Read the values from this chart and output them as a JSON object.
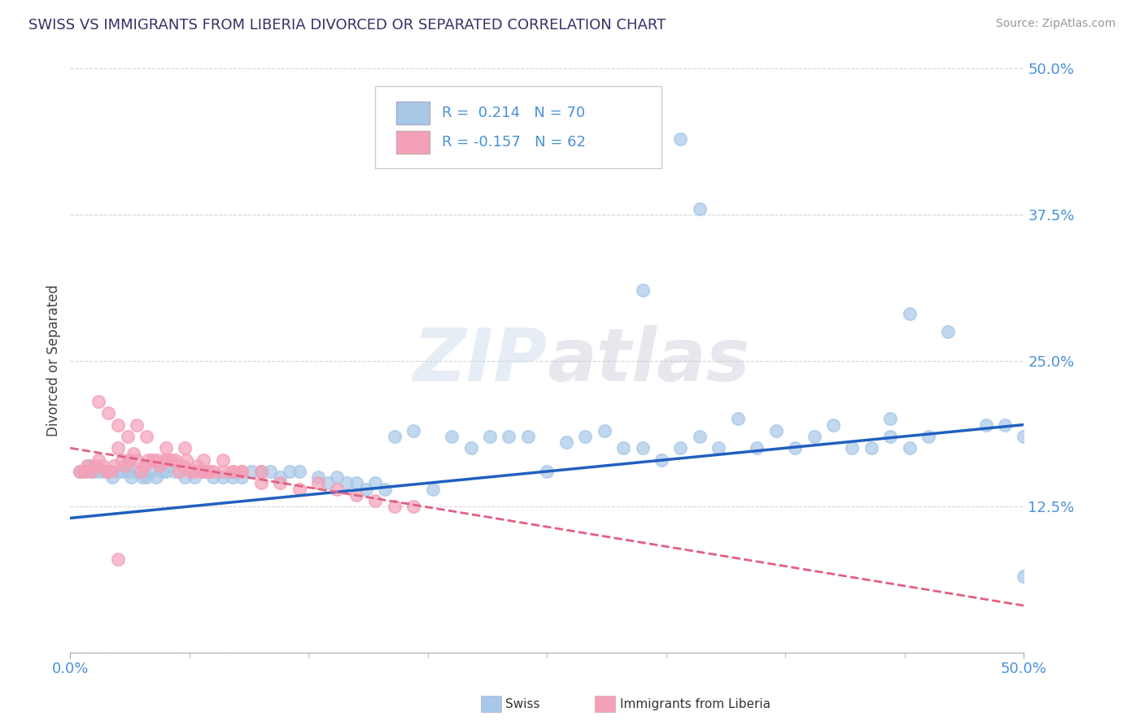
{
  "title": "SWISS VS IMMIGRANTS FROM LIBERIA DIVORCED OR SEPARATED CORRELATION CHART",
  "source": "Source: ZipAtlas.com",
  "ylabel": "Divorced or Separated",
  "xlim": [
    0.0,
    0.5
  ],
  "ylim": [
    0.0,
    0.5
  ],
  "yticks": [
    0.0,
    0.125,
    0.25,
    0.375,
    0.5
  ],
  "ytick_labels": [
    "",
    "12.5%",
    "25.0%",
    "37.5%",
    "50.0%"
  ],
  "swiss_color": "#a8c8e8",
  "liberia_color": "#f4a0b8",
  "swiss_line_color": "#2060c0",
  "liberia_line_color": "#e06080",
  "swiss_line_y0": 0.115,
  "swiss_line_y1": 0.195,
  "liberia_line_y0": 0.175,
  "liberia_line_y1": 0.04,
  "legend_patch_swiss": "#a8c8e8",
  "legend_patch_liberia": "#f4a0b8",
  "legend_text_color": "#4a90d9",
  "legend_r_color_swiss": "#4a90d9",
  "legend_r_color_liberia": "#4a90d9",
  "swiss_scatter": [
    [
      0.005,
      0.155
    ],
    [
      0.008,
      0.155
    ],
    [
      0.01,
      0.16
    ],
    [
      0.012,
      0.155
    ],
    [
      0.015,
      0.155
    ],
    [
      0.018,
      0.155
    ],
    [
      0.02,
      0.155
    ],
    [
      0.022,
      0.15
    ],
    [
      0.025,
      0.155
    ],
    [
      0.027,
      0.155
    ],
    [
      0.03,
      0.155
    ],
    [
      0.032,
      0.15
    ],
    [
      0.035,
      0.155
    ],
    [
      0.038,
      0.15
    ],
    [
      0.04,
      0.15
    ],
    [
      0.042,
      0.155
    ],
    [
      0.045,
      0.15
    ],
    [
      0.048,
      0.155
    ],
    [
      0.05,
      0.155
    ],
    [
      0.055,
      0.155
    ],
    [
      0.06,
      0.15
    ],
    [
      0.065,
      0.15
    ],
    [
      0.07,
      0.155
    ],
    [
      0.075,
      0.15
    ],
    [
      0.08,
      0.15
    ],
    [
      0.085,
      0.15
    ],
    [
      0.09,
      0.15
    ],
    [
      0.095,
      0.155
    ],
    [
      0.1,
      0.155
    ],
    [
      0.105,
      0.155
    ],
    [
      0.11,
      0.15
    ],
    [
      0.115,
      0.155
    ],
    [
      0.12,
      0.155
    ],
    [
      0.13,
      0.15
    ],
    [
      0.135,
      0.145
    ],
    [
      0.14,
      0.15
    ],
    [
      0.145,
      0.145
    ],
    [
      0.15,
      0.145
    ],
    [
      0.155,
      0.14
    ],
    [
      0.16,
      0.145
    ],
    [
      0.165,
      0.14
    ],
    [
      0.17,
      0.185
    ],
    [
      0.18,
      0.19
    ],
    [
      0.19,
      0.14
    ],
    [
      0.2,
      0.185
    ],
    [
      0.21,
      0.175
    ],
    [
      0.22,
      0.185
    ],
    [
      0.23,
      0.185
    ],
    [
      0.24,
      0.185
    ],
    [
      0.25,
      0.155
    ],
    [
      0.26,
      0.18
    ],
    [
      0.27,
      0.185
    ],
    [
      0.28,
      0.19
    ],
    [
      0.29,
      0.175
    ],
    [
      0.3,
      0.175
    ],
    [
      0.31,
      0.165
    ],
    [
      0.32,
      0.175
    ],
    [
      0.33,
      0.185
    ],
    [
      0.34,
      0.175
    ],
    [
      0.35,
      0.2
    ],
    [
      0.36,
      0.175
    ],
    [
      0.37,
      0.19
    ],
    [
      0.38,
      0.175
    ],
    [
      0.39,
      0.185
    ],
    [
      0.4,
      0.195
    ],
    [
      0.41,
      0.175
    ],
    [
      0.42,
      0.175
    ],
    [
      0.43,
      0.185
    ],
    [
      0.44,
      0.175
    ],
    [
      0.45,
      0.185
    ],
    [
      0.32,
      0.44
    ],
    [
      0.33,
      0.38
    ],
    [
      0.3,
      0.31
    ],
    [
      0.44,
      0.29
    ],
    [
      0.46,
      0.275
    ],
    [
      0.43,
      0.2
    ],
    [
      0.48,
      0.195
    ],
    [
      0.49,
      0.195
    ],
    [
      0.5,
      0.065
    ],
    [
      0.5,
      0.185
    ]
  ],
  "liberia_scatter": [
    [
      0.005,
      0.155
    ],
    [
      0.007,
      0.155
    ],
    [
      0.009,
      0.16
    ],
    [
      0.011,
      0.155
    ],
    [
      0.013,
      0.16
    ],
    [
      0.015,
      0.165
    ],
    [
      0.017,
      0.16
    ],
    [
      0.019,
      0.155
    ],
    [
      0.021,
      0.155
    ],
    [
      0.023,
      0.16
    ],
    [
      0.025,
      0.175
    ],
    [
      0.027,
      0.165
    ],
    [
      0.029,
      0.16
    ],
    [
      0.031,
      0.165
    ],
    [
      0.033,
      0.17
    ],
    [
      0.035,
      0.165
    ],
    [
      0.037,
      0.155
    ],
    [
      0.039,
      0.16
    ],
    [
      0.041,
      0.165
    ],
    [
      0.043,
      0.165
    ],
    [
      0.045,
      0.165
    ],
    [
      0.047,
      0.16
    ],
    [
      0.049,
      0.165
    ],
    [
      0.051,
      0.165
    ],
    [
      0.053,
      0.165
    ],
    [
      0.055,
      0.165
    ],
    [
      0.057,
      0.155
    ],
    [
      0.059,
      0.16
    ],
    [
      0.061,
      0.165
    ],
    [
      0.063,
      0.155
    ],
    [
      0.065,
      0.155
    ],
    [
      0.067,
      0.16
    ],
    [
      0.069,
      0.155
    ],
    [
      0.071,
      0.155
    ],
    [
      0.073,
      0.155
    ],
    [
      0.075,
      0.155
    ],
    [
      0.08,
      0.155
    ],
    [
      0.085,
      0.155
    ],
    [
      0.09,
      0.155
    ],
    [
      0.1,
      0.155
    ],
    [
      0.015,
      0.215
    ],
    [
      0.02,
      0.205
    ],
    [
      0.025,
      0.195
    ],
    [
      0.03,
      0.185
    ],
    [
      0.035,
      0.195
    ],
    [
      0.04,
      0.185
    ],
    [
      0.05,
      0.175
    ],
    [
      0.06,
      0.175
    ],
    [
      0.07,
      0.165
    ],
    [
      0.08,
      0.165
    ],
    [
      0.025,
      0.08
    ],
    [
      0.085,
      0.155
    ],
    [
      0.09,
      0.155
    ],
    [
      0.1,
      0.145
    ],
    [
      0.11,
      0.145
    ],
    [
      0.12,
      0.14
    ],
    [
      0.13,
      0.145
    ],
    [
      0.14,
      0.14
    ],
    [
      0.15,
      0.135
    ],
    [
      0.16,
      0.13
    ],
    [
      0.17,
      0.125
    ],
    [
      0.18,
      0.125
    ]
  ]
}
